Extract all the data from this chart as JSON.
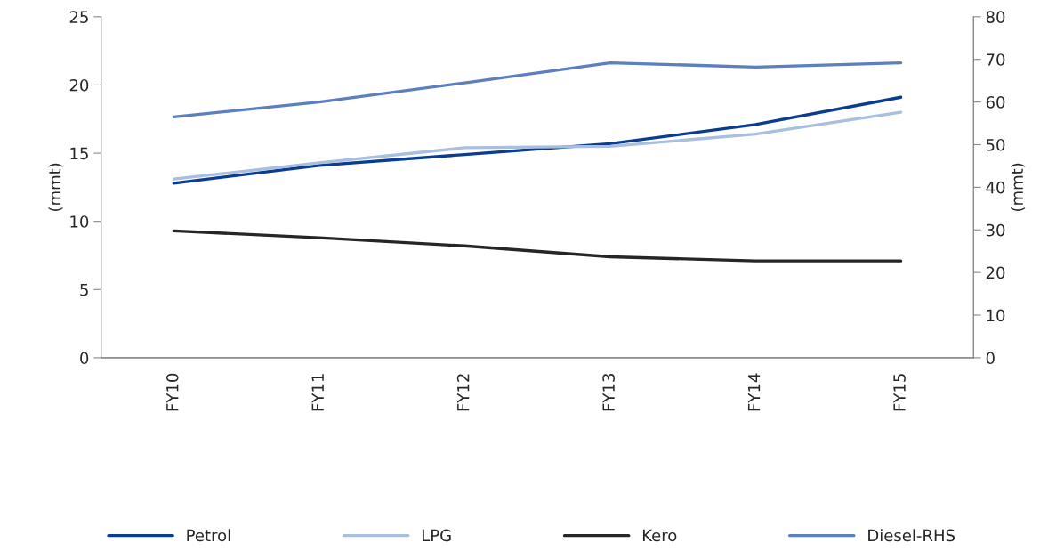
{
  "chart_data": {
    "type": "line",
    "ylabel": "(mmt)",
    "y2label": "(mmt)",
    "categories": [
      "FY10",
      "FY11",
      "FY12",
      "FY13",
      "FY14",
      "FY15"
    ],
    "series": [
      {
        "name": "Petrol",
        "color": "#0a3d8f",
        "values": [
          12.8,
          14.1,
          14.9,
          15.7,
          17.1,
          19.1
        ]
      },
      {
        "name": "LPG",
        "color": "#a9bfe0",
        "values": [
          13.1,
          14.3,
          15.4,
          15.5,
          16.4,
          18.0
        ]
      },
      {
        "name": "Kero",
        "color": "#262626",
        "values": [
          9.3,
          8.8,
          8.2,
          7.4,
          7.1,
          7.1
        ]
      },
      {
        "name": "Diesel-RHS",
        "color": "#5c7fc0",
        "axis": "y2",
        "values": [
          56.5,
          60.0,
          64.5,
          69.2,
          68.2,
          69.2
        ]
      }
    ],
    "ylim": [
      0,
      25
    ],
    "yticks": [
      0,
      5,
      10,
      15,
      20,
      25
    ],
    "y2lim": [
      0,
      80
    ],
    "y2ticks": [
      0,
      10,
      20,
      30,
      40,
      50,
      60,
      70,
      80
    ],
    "grid": false,
    "legend": "bottom",
    "marker": "none",
    "line_style": "solid"
  }
}
